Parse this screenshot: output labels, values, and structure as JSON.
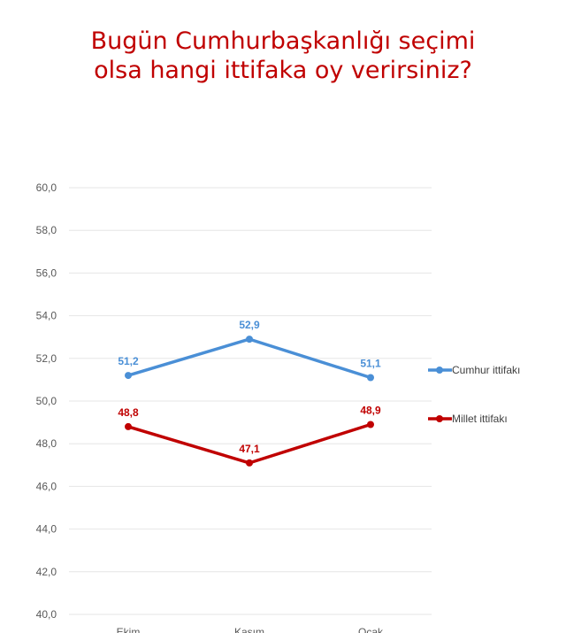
{
  "title_lines": [
    "Bugün Cumhurbaşkanlığı seçimi",
    "olsa hangi ittifaka oy verirsiniz?"
  ],
  "colors": {
    "title": "#c00000",
    "cumhur": "#4a8fd6",
    "millet": "#c00000",
    "grid": "#e6e6e6"
  },
  "chart_data": {
    "type": "line",
    "title": "Bugün Cumhurbaşkanlığı seçimi olsa hangi ittifaka oy verirsiniz?",
    "categories": [
      "Ekim",
      "Kasım",
      "Ocak"
    ],
    "ylim": [
      40,
      60
    ],
    "yticks": [
      "40,0",
      "42,0",
      "44,0",
      "46,0",
      "48,0",
      "50,0",
      "52,0",
      "54,0",
      "56,0",
      "58,0",
      "60,0"
    ],
    "grid": true,
    "legend_position": "right",
    "series": [
      {
        "name": "Cumhur ittifakı",
        "values": [
          51.2,
          52.9,
          51.1
        ],
        "labels": [
          "51,2",
          "52,9",
          "51,1"
        ],
        "color": "#4a8fd6"
      },
      {
        "name": "Millet ittifakı",
        "values": [
          48.8,
          47.1,
          48.9
        ],
        "labels": [
          "48,8",
          "47,1",
          "48,9"
        ],
        "color": "#c00000"
      }
    ]
  }
}
